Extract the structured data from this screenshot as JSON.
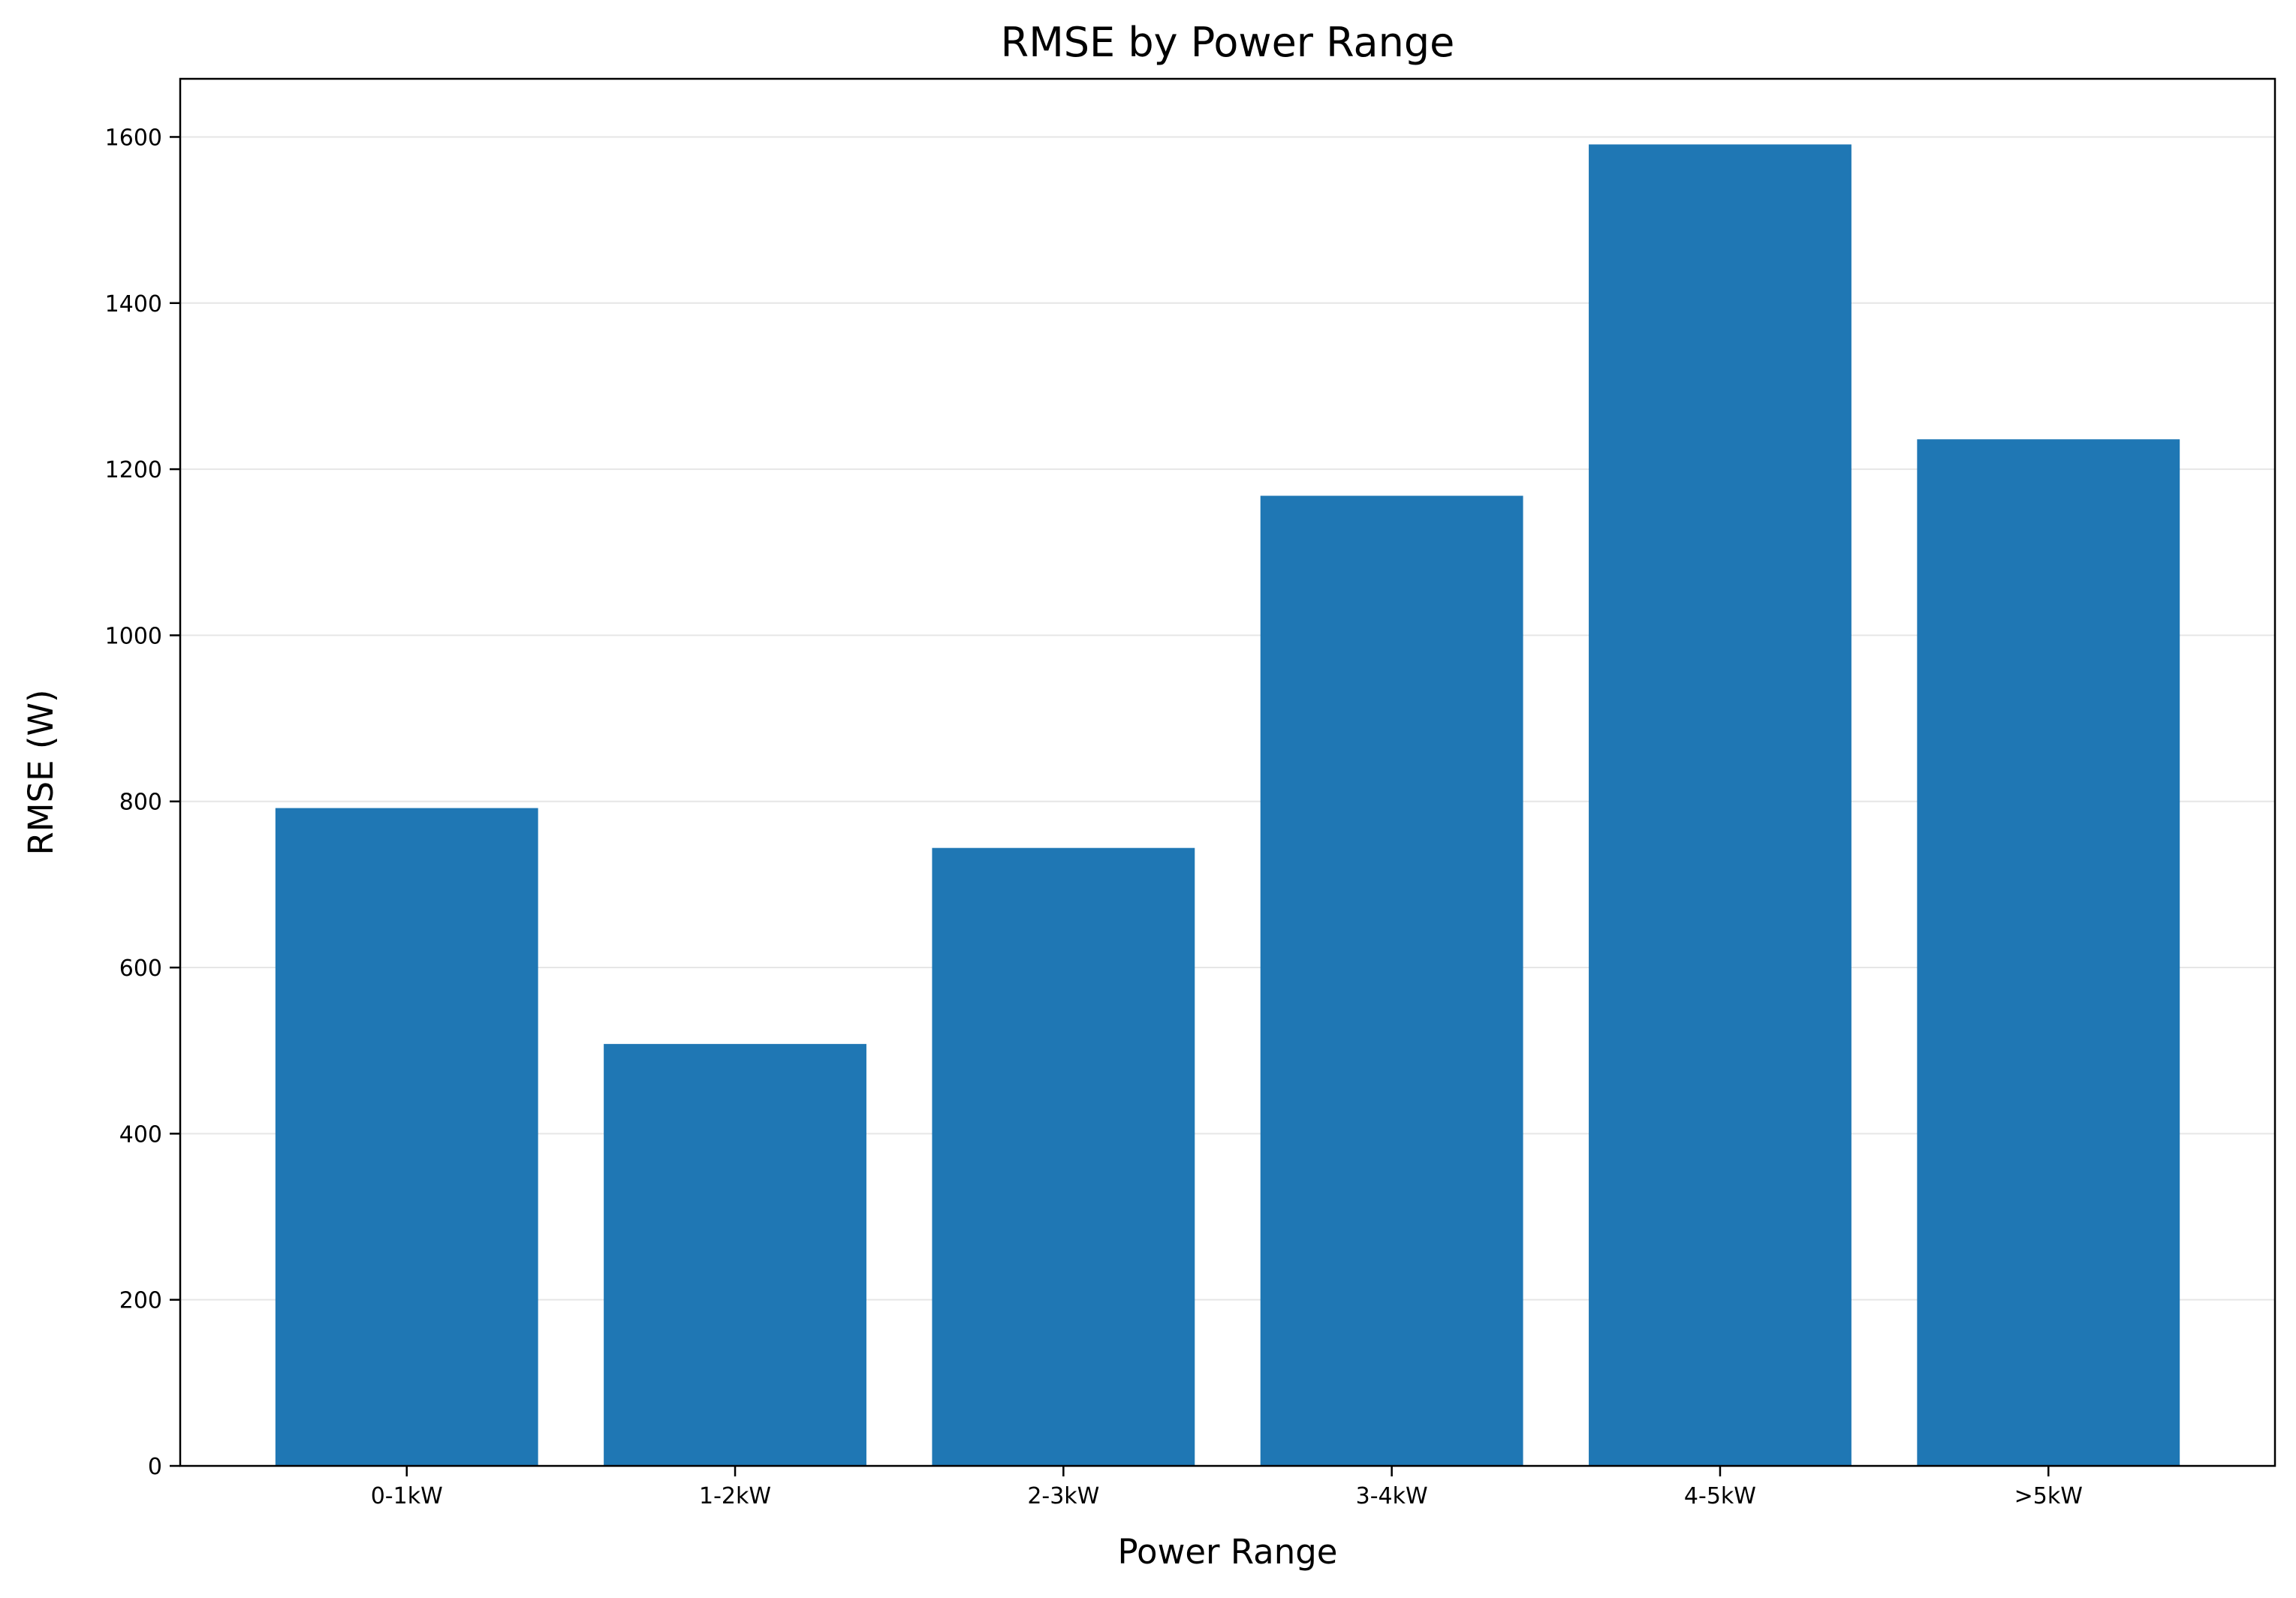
{
  "chart_data": {
    "type": "bar",
    "title": "RMSE by Power Range",
    "xlabel": "Power Range",
    "ylabel": "RMSE (W)",
    "categories": [
      "0-1kW",
      "1-2kW",
      "2-3kW",
      "3-4kW",
      "4-5kW",
      ">5kW"
    ],
    "values": [
      792,
      508,
      744,
      1168,
      1591,
      1236
    ],
    "ylim": [
      0,
      1670
    ],
    "yticks": [
      0,
      200,
      400,
      600,
      800,
      1000,
      1200,
      1400,
      1600
    ],
    "grid": "horizontal",
    "legend": "none",
    "colors": {
      "bar": "#1f77b4",
      "grid": "#e6e6e6",
      "axis": "#000000"
    }
  }
}
